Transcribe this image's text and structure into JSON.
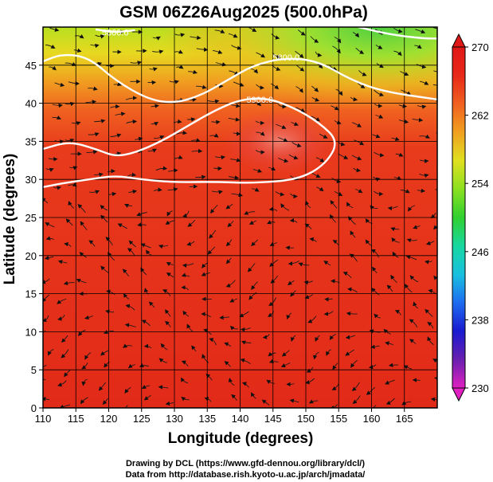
{
  "chart_data": {
    "type": "heatmap",
    "title": "GSM 06Z26Aug2025 (500.0hPa)",
    "xlabel": "Longitude (degrees)",
    "ylabel": "Latitude  (degrees)",
    "xlim": [
      110,
      170
    ],
    "ylim": [
      0,
      50
    ],
    "x_ticks": [
      110,
      115,
      120,
      125,
      130,
      135,
      140,
      145,
      150,
      155,
      160,
      165
    ],
    "y_ticks": [
      0,
      5,
      10,
      15,
      20,
      25,
      30,
      35,
      40,
      45
    ],
    "grid": true,
    "colorbar": {
      "min": 230,
      "max": 270,
      "tick_values": [
        230,
        238,
        246,
        254,
        262,
        270
      ],
      "colors": [
        "#e020c0",
        "#6a1fb0",
        "#1a1ad0",
        "#1e6cf0",
        "#18c0e0",
        "#18d8a0",
        "#30d030",
        "#8ae020",
        "#e0e020",
        "#f0a020",
        "#f06020",
        "#e82818",
        "#e01818"
      ]
    },
    "field": "temperature (K)",
    "overlay": "streamlines (wind)",
    "contours": [
      {
        "label": "5800.0",
        "label_position": [
          147,
          46
        ],
        "path": [
          [
            110,
            45.5
          ],
          [
            113,
            46.5
          ],
          [
            117,
            46
          ],
          [
            121,
            43
          ],
          [
            126,
            40.5
          ],
          [
            130,
            40
          ],
          [
            134,
            41
          ],
          [
            138,
            43
          ],
          [
            142,
            45
          ],
          [
            147,
            46
          ],
          [
            152,
            45.5
          ],
          [
            157,
            43
          ],
          [
            162,
            41.5
          ],
          [
            170,
            40.5
          ]
        ]
      },
      {
        "label": "5900.0",
        "label_position": [
          143,
          40.5
        ],
        "path": [
          [
            110,
            34
          ],
          [
            114,
            35
          ],
          [
            118,
            34
          ],
          [
            121,
            33
          ],
          [
            124,
            33.5
          ],
          [
            128,
            35
          ],
          [
            132,
            37
          ],
          [
            136,
            39
          ],
          [
            140,
            40.5
          ],
          [
            144,
            40.7
          ],
          [
            148,
            39.5
          ],
          [
            152,
            37.5
          ],
          [
            155,
            35
          ],
          [
            153,
            32
          ],
          [
            149,
            30
          ],
          [
            142,
            29.5
          ],
          [
            136,
            29.7
          ],
          [
            130,
            29.6
          ],
          [
            125,
            30
          ],
          [
            121,
            30.5
          ],
          [
            117,
            30
          ],
          [
            113,
            29.5
          ],
          [
            110,
            29
          ]
        ]
      },
      {
        "label": "5800.0",
        "label_position": [
          121,
          49.3
        ],
        "path": [
          [
            118,
            49.7
          ],
          [
            121,
            49.3
          ],
          [
            124,
            49.6
          ]
        ]
      },
      {
        "label": "",
        "label_position": [
          170,
          50
        ],
        "path": [
          [
            158,
            50
          ],
          [
            163,
            49
          ],
          [
            168,
            48.5
          ],
          [
            170,
            48.5
          ]
        ]
      }
    ]
  },
  "credits": {
    "line1": "Drawing by DCL (https://www.gfd-dennou.org/library/dcl/)",
    "line2": "Data from http://database.rish.kyoto-u.ac.jp/arch/jmadata/"
  }
}
